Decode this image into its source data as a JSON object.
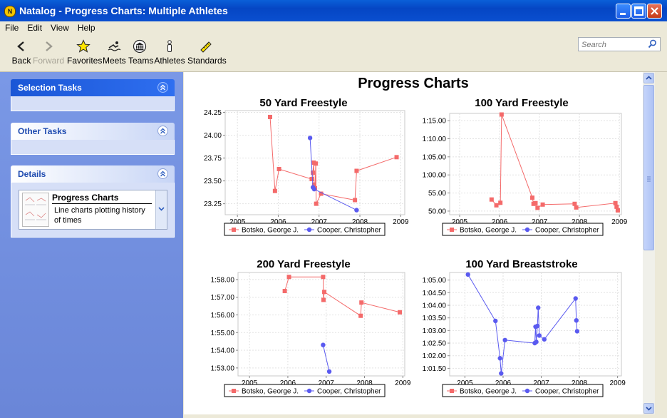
{
  "window": {
    "title": "Natalog - Progress Charts: Multiple Athletes"
  },
  "menu": [
    "File",
    "Edit",
    "View",
    "Help"
  ],
  "toolbar": {
    "back": "Back",
    "forward": "Forward",
    "favorites": "Favorites",
    "meets": "Meets",
    "teams": "Teams",
    "athletes": "Athletes",
    "standards": "Standards",
    "search_placeholder": "Search"
  },
  "sidebar": {
    "selection_tasks": "Selection Tasks",
    "other_tasks": "Other Tasks",
    "details": "Details",
    "details_item_title": "Progress Charts",
    "details_item_desc_line1": "Line charts plotting history",
    "details_item_desc_line2": "of times"
  },
  "main": {
    "title": "Progress Charts"
  },
  "colors": {
    "series1": "#f46a6a",
    "series2": "#5a5af0",
    "accent": "#0a5fd8"
  },
  "chart_data": [
    {
      "type": "line",
      "title": "50 Yard Freestyle",
      "x_ticks": [
        "2005",
        "2006",
        "2007",
        "2008",
        "2009"
      ],
      "xlim": [
        2004.7,
        2009.1
      ],
      "y_ticks": [
        "23.25",
        "23.50",
        "23.75",
        "24.00",
        "24.25"
      ],
      "ylim": [
        23.13,
        24.27
      ],
      "series": [
        {
          "name": "Botsko, George J.",
          "marker": "square",
          "x": [
            2005.8,
            2005.92,
            2006.02,
            2006.82,
            2006.85,
            2006.87,
            2006.88,
            2006.9,
            2006.92,
            2006.93,
            2007.05,
            2007.88,
            2007.92,
            2008.9
          ],
          "y": [
            24.2,
            23.39,
            23.63,
            23.52,
            23.59,
            23.7,
            23.46,
            23.42,
            23.69,
            23.25,
            23.36,
            23.29,
            23.61,
            23.76
          ]
        },
        {
          "name": "Cooper, Christopher",
          "marker": "circle",
          "x": [
            2006.78,
            2006.85,
            2006.88,
            2007.92
          ],
          "y": [
            23.97,
            23.43,
            23.41,
            23.18
          ]
        }
      ]
    },
    {
      "type": "line",
      "title": "100 Yard Freestyle",
      "x_ticks": [
        "2005",
        "2006",
        "2007",
        "2008",
        "2009"
      ],
      "xlim": [
        2004.75,
        2009.05
      ],
      "y_ticks": [
        "50.00",
        "55.00",
        "1:00.00",
        "1:05.00",
        "1:10.00",
        "1:15.00"
      ],
      "y_tick_values": [
        50,
        55,
        60,
        65,
        70,
        75
      ],
      "ylim": [
        49.0,
        77.0
      ],
      "series": [
        {
          "name": "Botsko, George J.",
          "marker": "square",
          "x": [
            2005.8,
            2005.92,
            2006.02,
            2006.05,
            2006.82,
            2006.85,
            2006.9,
            2006.95,
            2007.08,
            2007.88,
            2007.92,
            2008.9,
            2008.93,
            2008.96
          ],
          "y": [
            53.2,
            51.6,
            52.3,
            76.7,
            53.7,
            52.0,
            52.2,
            50.9,
            51.8,
            52.0,
            51.0,
            52.2,
            51.2,
            50.2
          ]
        },
        {
          "name": "Cooper, Christopher",
          "marker": "circle",
          "x": [],
          "y": []
        }
      ]
    },
    {
      "type": "line",
      "title": "200 Yard Freestyle",
      "x_ticks": [
        "2005",
        "2006",
        "2007",
        "2008",
        "2009"
      ],
      "xlim": [
        2004.7,
        2009.05
      ],
      "y_ticks": [
        "1:53.00",
        "1:54.00",
        "1:55.00",
        "1:56.00",
        "1:57.00",
        "1:58.00"
      ],
      "y_tick_values": [
        113,
        114,
        115,
        116,
        117,
        118
      ],
      "ylim": [
        112.55,
        118.4
      ],
      "series": [
        {
          "name": "Botsko, George J.",
          "marker": "square",
          "x": [
            2005.92,
            2006.03,
            2006.92,
            2006.93,
            2006.95,
            2007.9,
            2007.92,
            2008.92
          ],
          "y": [
            117.35,
            118.15,
            118.15,
            116.85,
            117.3,
            115.95,
            116.7,
            116.15
          ]
        },
        {
          "name": "Cooper, Christopher",
          "marker": "circle",
          "x": [
            2006.92,
            2007.08
          ],
          "y": [
            114.3,
            112.8
          ]
        }
      ]
    },
    {
      "type": "line",
      "title": "100 Yard Breaststroke",
      "x_ticks": [
        "2005",
        "2006",
        "2007",
        "2008",
        "2009"
      ],
      "xlim": [
        2004.6,
        2009.1
      ],
      "y_ticks": [
        "1:01.50",
        "1:02.00",
        "1:02.50",
        "1:03.00",
        "1:03.50",
        "1:04.00",
        "1:04.50",
        "1:05.00"
      ],
      "y_tick_values": [
        61.5,
        62.0,
        62.5,
        63.0,
        63.5,
        64.0,
        64.5,
        65.0
      ],
      "ylim": [
        61.2,
        65.3
      ],
      "series": [
        {
          "name": "Botsko, George J.",
          "marker": "square",
          "x": [],
          "y": []
        },
        {
          "name": "Cooper, Christopher",
          "marker": "circle",
          "x": [
            2005.08,
            2005.8,
            2005.92,
            2005.95,
            2006.05,
            2006.83,
            2006.85,
            2006.87,
            2006.9,
            2006.92,
            2006.95,
            2007.08,
            2007.9,
            2007.92,
            2007.94
          ],
          "y": [
            65.22,
            63.38,
            61.9,
            61.3,
            62.62,
            62.5,
            63.15,
            62.55,
            63.18,
            63.9,
            62.8,
            62.65,
            64.27,
            63.4,
            62.97
          ]
        }
      ]
    }
  ]
}
